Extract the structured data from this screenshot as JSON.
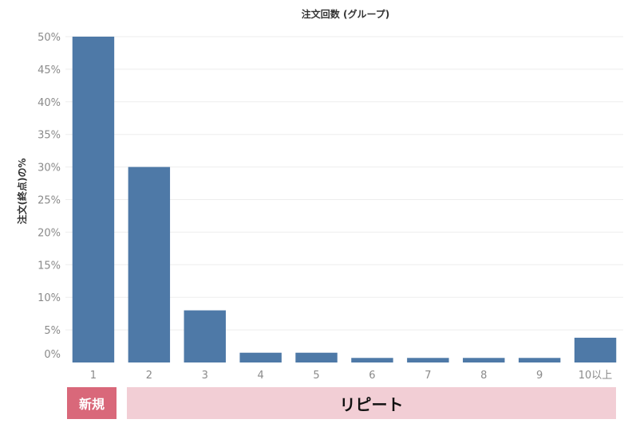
{
  "chart_data": {
    "type": "bar",
    "title": "注文回数 (グループ)",
    "xlabel": "",
    "ylabel": "注文(終点)の%",
    "categories": [
      "1",
      "2",
      "3",
      "4",
      "5",
      "6",
      "7",
      "8",
      "9",
      "10以上"
    ],
    "values": [
      50,
      30,
      8,
      1.5,
      1.5,
      0.7,
      0.7,
      0.7,
      0.7,
      3.8
    ],
    "ylim": [
      0,
      50
    ],
    "yticks": [
      {
        "value": 0,
        "label": "0%"
      },
      {
        "value": 5,
        "label": "5%"
      },
      {
        "value": 10,
        "label": "10%"
      },
      {
        "value": 15,
        "label": "15%"
      },
      {
        "value": 20,
        "label": "20%"
      },
      {
        "value": 25,
        "label": "25%"
      },
      {
        "value": 30,
        "label": "30%"
      },
      {
        "value": 35,
        "label": "35%"
      },
      {
        "value": 40,
        "label": "40%"
      },
      {
        "value": 45,
        "label": "45%"
      },
      {
        "value": 50,
        "label": "50%"
      }
    ],
    "grid": true,
    "bar_color": "#4e79a7"
  },
  "groups": {
    "new_label": "新規",
    "new_color": "#d9687a",
    "repeat_label": "リピート",
    "repeat_color": "#f2ced5"
  }
}
